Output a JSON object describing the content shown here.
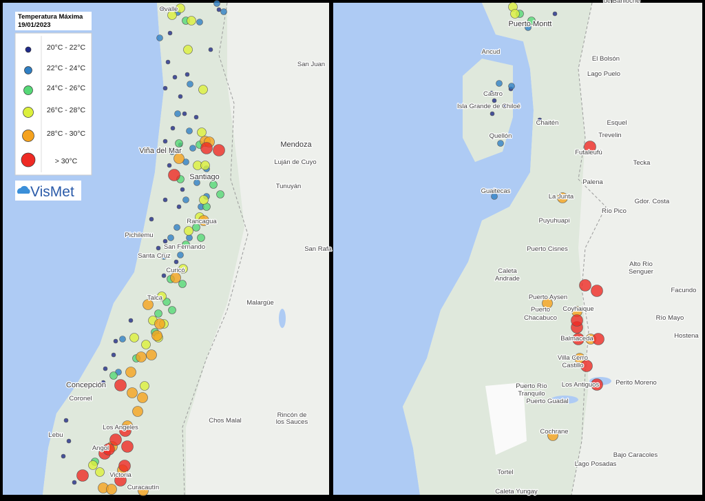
{
  "legend": {
    "title": "Temperatura Máxima",
    "date": "19/01/2023",
    "entries": [
      "20°C - 22°C",
      "22°C - 24°C",
      "24°C - 26°C",
      "26°C - 28°C",
      "28°C - 30°C",
      "> 30°C"
    ]
  },
  "logo": "VisMet",
  "places": {
    "left": [
      "Ovalle",
      "San Juan",
      "Viña del Mar",
      "Mendoza",
      "Luján de Cuyo",
      "Santiago",
      "Tunuyán",
      "Rancagua",
      "Pichilemu",
      "San Fernando",
      "San Rafa",
      "Santa Cruz",
      "Curicó",
      "Malargüe",
      "Talca",
      "Concepción",
      "Coronel",
      "Chos Malal",
      "Rincón de",
      "los Sauces",
      "Lebu",
      "Los Angeles",
      "Angol",
      "Victoria",
      "Curacautín"
    ],
    "right": [
      "de Bariloche",
      "Puerto Montt",
      "Ancud",
      "El Bolsón",
      "Lago Puelo",
      "Castro",
      "Isla Grande de Chiloé",
      "Esquel",
      "Chaitén",
      "Trevelin",
      "Quellón",
      "Futaleufú",
      "Tecka",
      "Palena",
      "Guaitecas",
      "La Junta",
      "Gdor. Costa",
      "Río Pico",
      "Puyuhuapi",
      "Puerto Cisnes",
      "Alto Río",
      "Senguer",
      "Caleta",
      "Andrade",
      "Facundo",
      "Puerto Aysen",
      "Coyhaique",
      "Puerto",
      "Chacabuco",
      "Río Mayo",
      "Hostena",
      "Balmaceda",
      "Villa Cerro",
      "Castillo",
      "Los Antiguos",
      "Perito Moreno",
      "Puerto Río",
      "Tranquilo",
      "Puerto Guadal",
      "Cochrane",
      "Bajo Caracoles",
      "Lago Posadas",
      "Tortel",
      "Caleta Yungay"
    ]
  }
}
